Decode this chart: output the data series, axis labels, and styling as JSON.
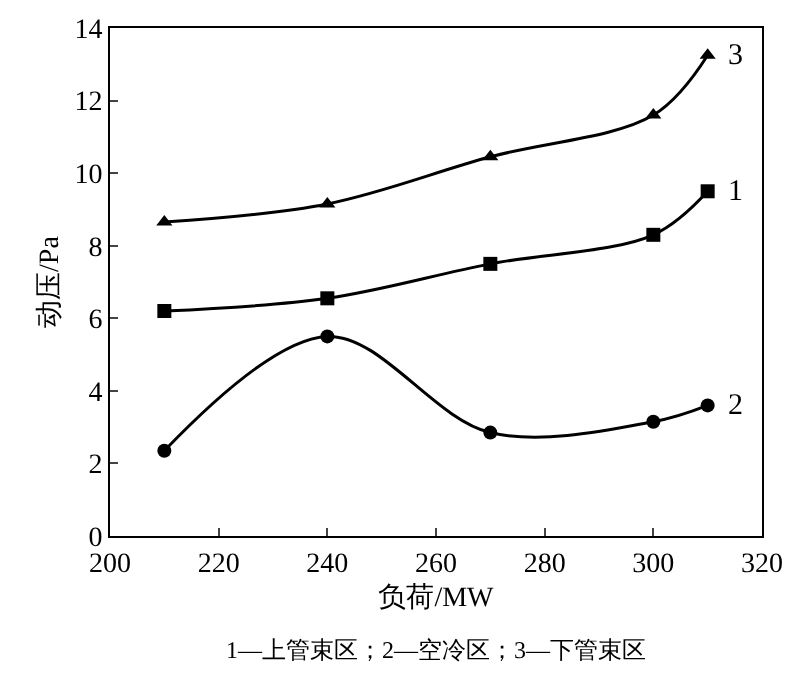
{
  "chart_data": {
    "type": "line",
    "xlabel": "负荷/MW",
    "ylabel": "动压/Pa",
    "x": [
      210,
      240,
      270,
      300,
      310
    ],
    "series": [
      {
        "name": "3",
        "color": "#000000",
        "marker": "triangle",
        "values": [
          8.65,
          9.15,
          10.45,
          11.6,
          13.25
        ]
      },
      {
        "name": "1",
        "color": "#000000",
        "marker": "square",
        "values": [
          6.2,
          6.55,
          7.5,
          8.3,
          9.5
        ]
      },
      {
        "name": "2",
        "color": "#000000",
        "marker": "circle",
        "values": [
          2.35,
          5.5,
          2.85,
          3.15,
          3.6
        ]
      }
    ],
    "xlim": [
      200,
      320
    ],
    "xticks": [
      200,
      220,
      240,
      260,
      280,
      300,
      320
    ],
    "ylim": [
      0,
      14
    ],
    "yticks": [
      0,
      2,
      4,
      6,
      8,
      10,
      12,
      14
    ],
    "line_style": "solid",
    "annotations": [
      "1—上管束区；2—空冷区；3—下管束区"
    ]
  }
}
